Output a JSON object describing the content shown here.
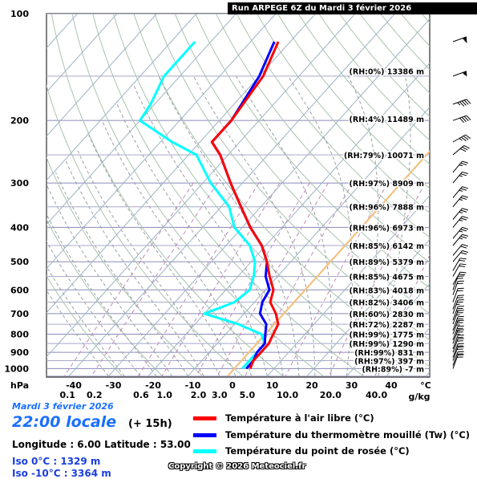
{
  "title": "Run ARPEGE 6Z du Mardi 3 février 2026",
  "date_text": "Mardi 3 février 2026",
  "time_text": "22:00 locale",
  "horizon_text": "(+ 15h)",
  "coords_text": "Longitude : 6.00  Latitude : 53.00",
  "iso0_text": "Iso 0°C : 1329 m",
  "iso10_text": "Iso -10°C : 3364 m",
  "copyright": "Copyright © 2026 Meteociel.fr",
  "legend": [
    {
      "label": "Température à l'air libre (°C)",
      "color": "#ff0000"
    },
    {
      "label": "Température du thermomètre mouillé (Tw) (°C)",
      "color": "#0000ff"
    },
    {
      "label": "Température du point de rosée (°C)",
      "color": "#00ffff"
    }
  ],
  "chart_data": {
    "type": "line",
    "chart_kind": "skew-T log-P sounding",
    "pressure_ticks": [
      "100",
      "200",
      "300",
      "400",
      "500",
      "600",
      "700",
      "800",
      "900",
      "1000"
    ],
    "pressure_unit": "hPa",
    "temperature_ticks": [
      "-40",
      "-30",
      "-20",
      "-10",
      "0",
      "10",
      "20",
      "30",
      "40"
    ],
    "temperature_unit": "°C",
    "mixing_ratio_ticks": [
      "0.1",
      "0.2",
      "0.6",
      "1.0",
      "2.0",
      "3.0",
      "5.0",
      "10.0",
      "20.0",
      "40.0"
    ],
    "mixing_ratio_unit": "g/kg",
    "level_labels": [
      {
        "p": 145,
        "text": "(RH:0%) 13386 m"
      },
      {
        "p": 198,
        "text": "(RH:4%) 11489 m"
      },
      {
        "p": 250,
        "text": "(RH:79%) 10071 m"
      },
      {
        "p": 300,
        "text": "(RH:97%) 8909 m"
      },
      {
        "p": 350,
        "text": "(RH:96%) 7888 m"
      },
      {
        "p": 400,
        "text": "(RH:96%) 6973 m"
      },
      {
        "p": 450,
        "text": "(RH:85%) 6142 m"
      },
      {
        "p": 500,
        "text": "(RH:89%) 5379 m"
      },
      {
        "p": 550,
        "text": "(RH:85%) 4675 m"
      },
      {
        "p": 600,
        "text": "(RH:83%) 4018 m"
      },
      {
        "p": 650,
        "text": "(RH:82%) 3406 m"
      },
      {
        "p": 700,
        "text": "(RH:60%) 2830 m"
      },
      {
        "p": 750,
        "text": "(RH:72%) 2287 m"
      },
      {
        "p": 800,
        "text": "(RH:99%) 1775 m"
      },
      {
        "p": 850,
        "text": "(RH:99%) 1290 m"
      },
      {
        "p": 900,
        "text": "(RH:99%) 831 m"
      },
      {
        "p": 950,
        "text": "(RH:97%) 397 m"
      },
      {
        "p": 1000,
        "text": "(RH:89%) -7 m"
      }
    ],
    "series": [
      {
        "name": "Température à l'air libre (°C)",
        "color": "#ff0000",
        "points": [
          [
            120,
            -63
          ],
          [
            150,
            -59
          ],
          [
            200,
            -57
          ],
          [
            230,
            -57
          ],
          [
            250,
            -52
          ],
          [
            300,
            -43
          ],
          [
            350,
            -35
          ],
          [
            400,
            -28
          ],
          [
            450,
            -21
          ],
          [
            500,
            -16
          ],
          [
            550,
            -12
          ],
          [
            600,
            -8
          ],
          [
            650,
            -6
          ],
          [
            700,
            -2
          ],
          [
            750,
            1
          ],
          [
            800,
            2
          ],
          [
            850,
            3
          ],
          [
            900,
            3
          ],
          [
            950,
            3
          ],
          [
            1000,
            4
          ]
        ]
      },
      {
        "name": "Température du thermomètre mouillé (Tw) (°C)",
        "color": "#0000ff",
        "points": [
          [
            120,
            -64
          ],
          [
            150,
            -60
          ],
          [
            200,
            -57
          ],
          [
            230,
            -57
          ],
          [
            250,
            -52
          ],
          [
            300,
            -43
          ],
          [
            350,
            -35
          ],
          [
            400,
            -28
          ],
          [
            450,
            -21
          ],
          [
            500,
            -16
          ],
          [
            550,
            -13
          ],
          [
            600,
            -9
          ],
          [
            650,
            -8
          ],
          [
            700,
            -6
          ],
          [
            750,
            -2
          ],
          [
            800,
            0
          ],
          [
            850,
            2
          ],
          [
            900,
            2
          ],
          [
            950,
            3
          ],
          [
            1000,
            3
          ]
        ]
      },
      {
        "name": "Température du point de rosée (°C)",
        "color": "#00ffff",
        "points": [
          [
            120,
            -84
          ],
          [
            150,
            -84
          ],
          [
            180,
            -81
          ],
          [
            200,
            -80
          ],
          [
            230,
            -67
          ],
          [
            250,
            -58
          ],
          [
            300,
            -48
          ],
          [
            350,
            -38
          ],
          [
            400,
            -32
          ],
          [
            450,
            -24
          ],
          [
            500,
            -19
          ],
          [
            550,
            -16
          ],
          [
            600,
            -14
          ],
          [
            650,
            -15
          ],
          [
            700,
            -20
          ],
          [
            750,
            -9
          ],
          [
            800,
            -1
          ],
          [
            850,
            2
          ],
          [
            900,
            2
          ],
          [
            950,
            2
          ],
          [
            1000,
            2
          ]
        ]
      }
    ],
    "wind": [
      {
        "p": 120,
        "dir": 250,
        "kt": 60
      },
      {
        "p": 150,
        "dir": 250,
        "kt": 55
      },
      {
        "p": 180,
        "dir": 250,
        "kt": 45
      },
      {
        "p": 200,
        "dir": 250,
        "kt": 40
      },
      {
        "p": 230,
        "dir": 240,
        "kt": 35
      },
      {
        "p": 250,
        "dir": 230,
        "kt": 30
      },
      {
        "p": 280,
        "dir": 220,
        "kt": 25
      },
      {
        "p": 300,
        "dir": 220,
        "kt": 25
      },
      {
        "p": 330,
        "dir": 220,
        "kt": 25
      },
      {
        "p": 350,
        "dir": 220,
        "kt": 25
      },
      {
        "p": 380,
        "dir": 220,
        "kt": 25
      },
      {
        "p": 400,
        "dir": 220,
        "kt": 25
      },
      {
        "p": 430,
        "dir": 220,
        "kt": 25
      },
      {
        "p": 450,
        "dir": 220,
        "kt": 25
      },
      {
        "p": 480,
        "dir": 220,
        "kt": 20
      },
      {
        "p": 500,
        "dir": 220,
        "kt": 20
      },
      {
        "p": 530,
        "dir": 210,
        "kt": 20
      },
      {
        "p": 550,
        "dir": 210,
        "kt": 20
      },
      {
        "p": 580,
        "dir": 210,
        "kt": 20
      },
      {
        "p": 600,
        "dir": 200,
        "kt": 20
      },
      {
        "p": 620,
        "dir": 200,
        "kt": 20
      },
      {
        "p": 650,
        "dir": 200,
        "kt": 20
      },
      {
        "p": 680,
        "dir": 200,
        "kt": 20
      },
      {
        "p": 700,
        "dir": 200,
        "kt": 25
      },
      {
        "p": 730,
        "dir": 200,
        "kt": 25
      },
      {
        "p": 750,
        "dir": 200,
        "kt": 25
      },
      {
        "p": 780,
        "dir": 200,
        "kt": 25
      },
      {
        "p": 800,
        "dir": 200,
        "kt": 25
      },
      {
        "p": 830,
        "dir": 200,
        "kt": 25
      },
      {
        "p": 850,
        "dir": 200,
        "kt": 25
      },
      {
        "p": 880,
        "dir": 200,
        "kt": 20
      },
      {
        "p": 900,
        "dir": 200,
        "kt": 20
      },
      {
        "p": 930,
        "dir": 200,
        "kt": 20
      },
      {
        "p": 950,
        "dir": 200,
        "kt": 20
      },
      {
        "p": 980,
        "dir": 200,
        "kt": 20
      },
      {
        "p": 1000,
        "dir": 200,
        "kt": 20
      }
    ],
    "ylim": [
      100,
      1050
    ],
    "xlim": [
      -45,
      45
    ],
    "grid": true,
    "legend_position": "bottom"
  }
}
